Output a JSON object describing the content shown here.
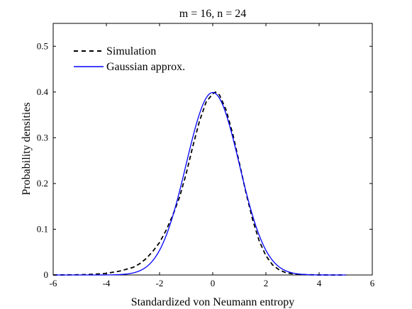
{
  "chart_data": {
    "type": "line",
    "title": "m = 16, n = 24",
    "xlabel": "Standardized von Neumann entropy",
    "ylabel": "Probability densities",
    "xlim": [
      -6,
      6
    ],
    "ylim": [
      0,
      0.55
    ],
    "xticks": [
      -6,
      -4,
      -2,
      0,
      2,
      4,
      6
    ],
    "yticks": [
      0,
      0.1,
      0.2,
      0.3,
      0.4,
      0.5
    ],
    "xtick_labels": [
      "-6",
      "-4",
      "-2",
      "0",
      "2",
      "4",
      "6"
    ],
    "ytick_labels": [
      "0",
      "0.1",
      "0.2",
      "0.3",
      "0.4",
      "0.5"
    ],
    "grid": false,
    "legend_position": "top-left",
    "series": [
      {
        "name": "Simulation",
        "style": "dashed",
        "color": "#000000",
        "x": [
          -6,
          -5,
          -4.5,
          -4,
          -3.5,
          -3,
          -2.75,
          -2.5,
          -2.25,
          -2,
          -1.75,
          -1.5,
          -1.25,
          -1,
          -0.75,
          -0.5,
          -0.25,
          0,
          0.1,
          0.25,
          0.5,
          0.75,
          1,
          1.25,
          1.5,
          1.75,
          2,
          2.25,
          2.5,
          2.75,
          3,
          3.5,
          4,
          4.5,
          5
        ],
        "y": [
          0,
          0.0005,
          0.0015,
          0.0035,
          0.0085,
          0.0165,
          0.0245,
          0.036,
          0.052,
          0.071,
          0.098,
          0.131,
          0.17,
          0.221,
          0.281,
          0.336,
          0.378,
          0.396,
          0.4,
          0.394,
          0.361,
          0.309,
          0.245,
          0.18,
          0.121,
          0.074,
          0.042,
          0.022,
          0.011,
          0.005,
          0.0025,
          0.0006,
          0.0001,
          0,
          0
        ]
      },
      {
        "name": "Gaussian approx.",
        "style": "solid",
        "color": "#0000ff",
        "function": "standard_normal_pdf",
        "x_range": [
          -6,
          5
        ]
      }
    ]
  }
}
